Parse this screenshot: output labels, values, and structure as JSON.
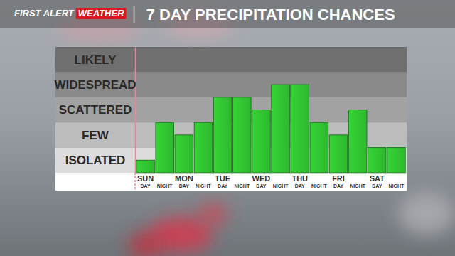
{
  "chart_data": {
    "type": "bar",
    "brand": "FIRST ALERT",
    "brand_highlight": "WEATHER",
    "title": "7 DAY PRECIPITATION CHANCES",
    "categories": [
      [
        "SUN",
        "DAY"
      ],
      [
        "NIGHT"
      ],
      [
        "MON",
        "DAY"
      ],
      [
        "NIGHT"
      ],
      [
        "TUE",
        "DAY"
      ],
      [
        "NIGHT"
      ],
      [
        "WED",
        "DAY"
      ],
      [
        "NIGHT"
      ],
      [
        "THU",
        "DAY"
      ],
      [
        "NIGHT"
      ],
      [
        "FRI",
        "DAY"
      ],
      [
        "NIGHT"
      ],
      [
        "SAT",
        "DAY"
      ],
      [
        "NIGHT"
      ]
    ],
    "values": [
      0.5,
      2.0,
      1.5,
      2.0,
      3.0,
      3.0,
      2.5,
      3.5,
      3.5,
      2.0,
      1.5,
      2.5,
      1.0,
      1.0
    ],
    "color": "#2eb82e",
    "ylim": [
      0,
      5
    ],
    "yticks": [
      {
        "value": 0.5,
        "label": "ISOLATED"
      },
      {
        "value": 1.5,
        "label": "FEW"
      },
      {
        "value": 2.5,
        "label": "SCATTERED"
      },
      {
        "value": 3.5,
        "label": "WIDESPREAD"
      },
      {
        "value": 4.5,
        "label": "LIKELY"
      }
    ],
    "grid": true
  }
}
